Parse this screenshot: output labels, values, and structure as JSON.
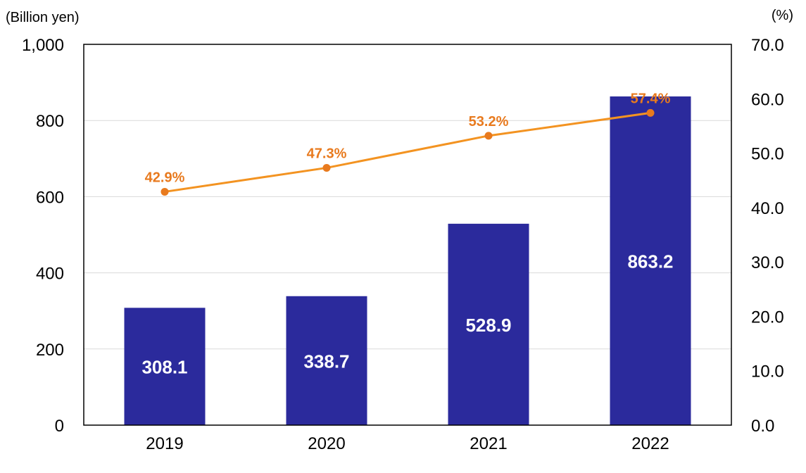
{
  "chart_data": {
    "type": "bar",
    "categories": [
      "2019",
      "2020",
      "2021",
      "2022"
    ],
    "series": [
      {
        "type": "bar",
        "axis": "left",
        "values": [
          308.1,
          338.7,
          528.9,
          863.2
        ],
        "labels": [
          "308.1",
          "338.7",
          "528.9",
          "863.2"
        ],
        "color": "#2b2a9c"
      },
      {
        "type": "line",
        "axis": "right",
        "values": [
          42.9,
          47.3,
          53.2,
          57.4
        ],
        "labels": [
          "42.9%",
          "47.3%",
          "53.2%",
          "57.4%"
        ],
        "color": "#f39321",
        "label_color": "#e87a1e"
      }
    ],
    "left_axis": {
      "unit": "(Billion yen)",
      "range": [
        0,
        1000
      ],
      "ticks": [
        0,
        200,
        400,
        600,
        800,
        1000
      ],
      "tick_labels": [
        "0",
        "200",
        "400",
        "600",
        "800",
        "1,000"
      ]
    },
    "right_axis": {
      "unit": "(%)",
      "range": [
        0,
        70
      ],
      "ticks": [
        0,
        10,
        20,
        30,
        40,
        50,
        60,
        70
      ],
      "tick_labels": [
        "0.0",
        "10.0",
        "20.0",
        "30.0",
        "40.0",
        "50.0",
        "60.0",
        "70.0"
      ]
    },
    "grid": true,
    "grid_color": "#d9d9d9",
    "legend": "none"
  }
}
